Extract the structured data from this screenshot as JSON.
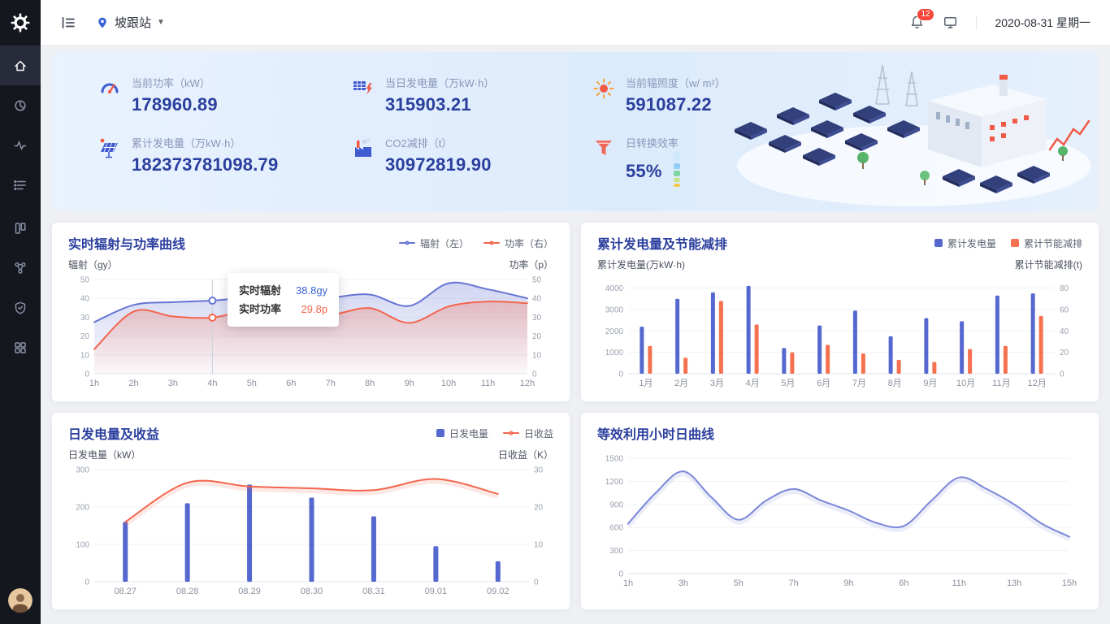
{
  "colors": {
    "accent": "#2b3f9e",
    "badge": "#f5483b"
  },
  "header": {
    "station": "坡跟站",
    "badge": "12",
    "date": "2020-08-31 星期一"
  },
  "sidebar": {
    "icons": [
      "logo",
      "home",
      "pie-chart",
      "activity",
      "list",
      "kanban",
      "topology",
      "shield-check",
      "apps",
      "avatar"
    ],
    "active": "home"
  },
  "stats": {
    "items": [
      {
        "icon": "power-gauge-icon",
        "label": "当前功率（kW）",
        "value": "178960.89"
      },
      {
        "icon": "daily-energy-icon",
        "label": "当日发电量（万kW·h）",
        "value": "315903.21"
      },
      {
        "icon": "irradiance-sun-icon",
        "label": "当前辐照度（w/ m²）",
        "value": "591087.22"
      },
      {
        "icon": "solar-panel-icon",
        "label": "累计发电量（万kW·h）",
        "value": "182373781098.79"
      },
      {
        "icon": "co2-factory-icon",
        "label": "CO2减排（t）",
        "value": "30972819.90"
      },
      {
        "icon": "efficiency-funnel-icon",
        "label": "日转换效率",
        "value": "55%"
      }
    ]
  },
  "chart_data": [
    {
      "type": "line",
      "title": "实时辐射与功率曲线",
      "left_caption": "辐射（gy）",
      "right_caption": "功率（p）",
      "categories": [
        "1h",
        "2h",
        "3h",
        "4h",
        "5h",
        "6h",
        "7h",
        "8h",
        "9h",
        "10h",
        "11h",
        "12h"
      ],
      "left_ticks": [
        0,
        10,
        20,
        30,
        40,
        50
      ],
      "right_ticks": [
        0,
        10,
        20,
        30,
        40,
        50
      ],
      "legend_position": "top-right",
      "grid": true,
      "series": [
        {
          "name": "辐射（左）",
          "type": "line",
          "axis": "left",
          "color": "#6674d4",
          "area": true,
          "values": [
            27.4,
            36.5,
            38,
            38.8,
            40.4,
            39.6,
            40.4,
            42,
            36,
            48,
            44.8,
            40
          ]
        },
        {
          "name": "功率（右）",
          "type": "line",
          "axis": "right",
          "color": "#f4654d",
          "area": true,
          "values": [
            13,
            33,
            30.4,
            29.8,
            34,
            32.6,
            31.3,
            34.8,
            27,
            35.7,
            38.3,
            37.4
          ]
        }
      ],
      "marker_index": 3,
      "tooltip": {
        "rows": [
          {
            "label": "实时辐射",
            "value": "38.8gy",
            "color": "#3a62d8"
          },
          {
            "label": "实时功率",
            "value": "29.8p",
            "color": "#f4654d"
          }
        ]
      }
    },
    {
      "type": "bar",
      "title": "累计发电量及节能减排",
      "left_caption": "累计发电量(万kW·h)",
      "right_caption": "累计节能减排(t)",
      "categories": [
        "1月",
        "2月",
        "3月",
        "4月",
        "5月",
        "6月",
        "7月",
        "8月",
        "9月",
        "10月",
        "11月",
        "12月"
      ],
      "left_ticks": [
        0,
        1000,
        2000,
        3000,
        4000
      ],
      "right_ticks": [
        0,
        20,
        40,
        60,
        80
      ],
      "left_plot_max": 4400,
      "right_plot_max": 88,
      "legend_position": "top-right",
      "grid": true,
      "series": [
        {
          "name": "累计发电量",
          "type": "bar",
          "axis": "left",
          "color": "#5468cf",
          "values": [
            2200,
            3500,
            3800,
            4100,
            1200,
            2250,
            2950,
            1750,
            2600,
            2450,
            3650,
            3750
          ]
        },
        {
          "name": "累计节能减排",
          "type": "bar",
          "axis": "right",
          "color": "#f4724f",
          "values": [
            26,
            15,
            68,
            46,
            20,
            27,
            19,
            13,
            11,
            23,
            26,
            54
          ]
        }
      ]
    },
    {
      "type": "mixed",
      "title": "日发电量及收益",
      "left_caption": "日发电量（kW）",
      "right_caption": "日收益（K）",
      "categories": [
        "08.27",
        "08.28",
        "08.29",
        "08.30",
        "08.31",
        "09.01",
        "09.02"
      ],
      "left_ticks": [
        0,
        100,
        200,
        300
      ],
      "right_ticks": [
        0,
        10,
        20,
        30
      ],
      "legend_position": "top-right",
      "grid": true,
      "series": [
        {
          "name": "日发电量",
          "type": "bar",
          "axis": "left",
          "color": "#5468cf",
          "values": [
            160,
            210,
            260,
            225,
            175,
            95,
            55
          ]
        },
        {
          "name": "日收益",
          "type": "line",
          "axis": "right",
          "color": "#f4654d",
          "shadow": true,
          "values": [
            16,
            26.5,
            25.5,
            25,
            24.5,
            27.5,
            23.5
          ]
        }
      ]
    },
    {
      "type": "line",
      "title": "等效利用小时日曲线",
      "categories": [
        "1h",
        "3h",
        "5h",
        "7h",
        "9h",
        "6h",
        "11h",
        "13h",
        "15h"
      ],
      "left_ticks": [
        0,
        300,
        600,
        900,
        1200,
        1500
      ],
      "grid": true,
      "series": [
        {
          "name": "等效利用小时",
          "type": "line",
          "axis": "left",
          "color": "#7b87d9",
          "shadow": true,
          "values": [
            650,
            1050,
            1330,
            1000,
            700,
            950,
            1100,
            950,
            820,
            660,
            620,
            950,
            1250,
            1100,
            900,
            650,
            480
          ]
        }
      ]
    }
  ]
}
